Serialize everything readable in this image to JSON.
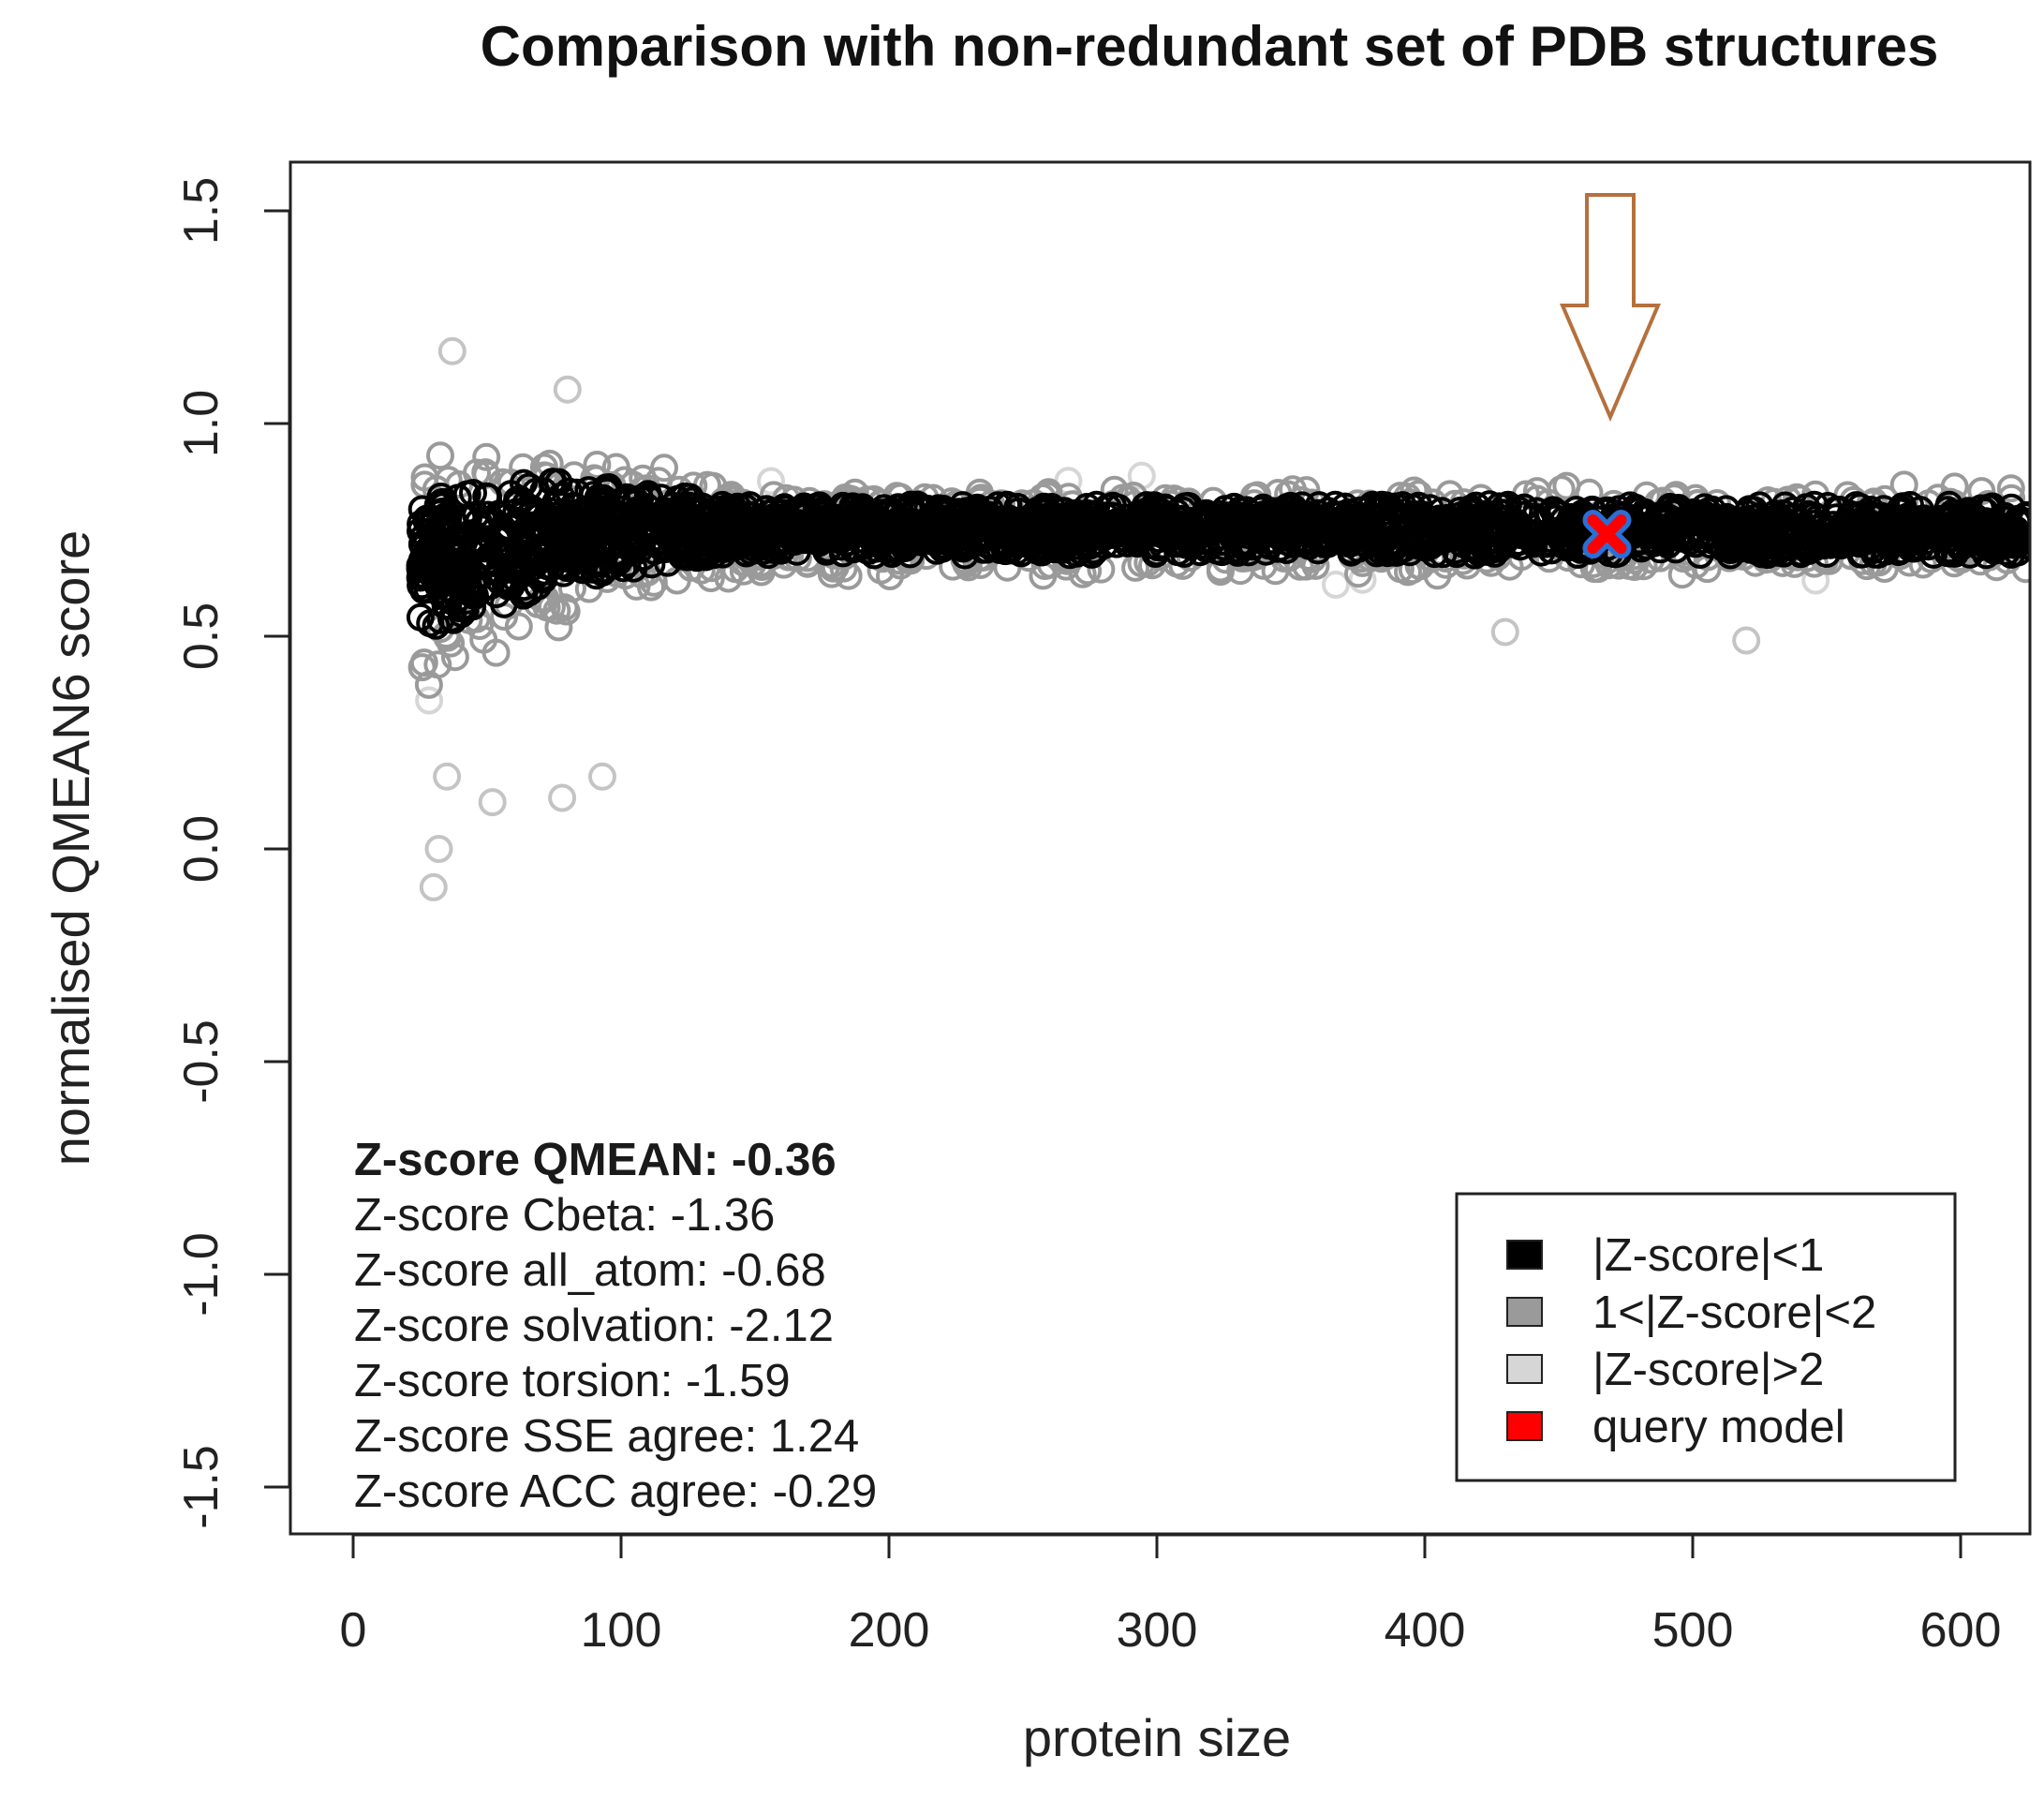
{
  "chart_data": {
    "type": "scatter",
    "title": "Comparison with non-redundant set of PDB structures",
    "xlabel": "protein size",
    "ylabel": "normalised QMEAN6 score",
    "xlim": [
      -20,
      625
    ],
    "ylim": [
      -1.6,
      1.65
    ],
    "xticks": [
      0,
      100,
      200,
      300,
      400,
      500,
      600
    ],
    "yticks": [
      -1.5,
      -1.0,
      -0.5,
      0.0,
      0.5,
      1.0,
      1.5
    ],
    "xtick_labels": [
      "0",
      "100",
      "200",
      "300",
      "400",
      "500",
      "600"
    ],
    "ytick_labels": [
      "-1.5",
      "-1.0",
      "-0.5",
      "0.0",
      "0.5",
      "1.0",
      "1.5"
    ],
    "reference_band": {
      "x_range": [
        25,
        625
      ],
      "center": 0.75,
      "core_halfwidth_small_proteins": 0.17,
      "core_halfwidth_large_proteins": 0.06
    },
    "outliers": [
      {
        "x": 37,
        "y": 1.17
      },
      {
        "x": 32,
        "y": 0.0
      },
      {
        "x": 30,
        "y": -0.09
      },
      {
        "x": 52,
        "y": 0.11
      },
      {
        "x": 78,
        "y": 0.12
      },
      {
        "x": 93,
        "y": 0.17
      },
      {
        "x": 35,
        "y": 0.17
      },
      {
        "x": 80,
        "y": 1.08
      },
      {
        "x": 520,
        "y": 0.49
      },
      {
        "x": 430,
        "y": 0.51
      }
    ],
    "query_model": {
      "x": 468,
      "y": 0.74,
      "label": "query model"
    },
    "arrow_target": {
      "x": 470,
      "y": 1.0
    },
    "annotations": [
      {
        "text": "Z-score QMEAN: -0.36",
        "bold": true
      },
      {
        "text": "Z-score Cbeta: -1.36",
        "bold": false
      },
      {
        "text": "Z-score all_atom: -0.68",
        "bold": false
      },
      {
        "text": "Z-score solvation: -2.12",
        "bold": false
      },
      {
        "text": "Z-score torsion: -1.59",
        "bold": false
      },
      {
        "text": "Z-score SSE agree: 1.24",
        "bold": false
      },
      {
        "text": "Z-score ACC agree: -0.29",
        "bold": false
      }
    ],
    "legend": {
      "position": "bottom-right",
      "entries": [
        {
          "label": "|Z-score|<1",
          "color": "#000000"
        },
        {
          "label": "1<|Z-score|<2",
          "color": "#9a9a9a"
        },
        {
          "label": "|Z-score|>2",
          "color": "#d6d6d6"
        },
        {
          "label": "query model",
          "color": "#ff0000"
        }
      ]
    },
    "colors": {
      "core": "#000000",
      "mid": "#9a9a9a",
      "outer": "#d6d6d6",
      "query_fill": "#ff0000",
      "query_outline": "#2a6fd6",
      "arrow": "#b5703d"
    }
  }
}
